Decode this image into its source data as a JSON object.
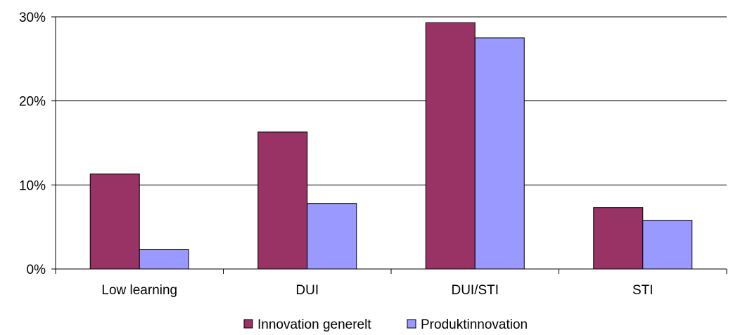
{
  "chart_data": {
    "type": "bar",
    "categories": [
      "Low learning",
      "DUI",
      "DUI/STI",
      "STI"
    ],
    "series": [
      {
        "name": "Innovation generelt",
        "values": [
          11.3,
          16.3,
          29.3,
          7.3
        ],
        "color": "#993366"
      },
      {
        "name": "Produktinnovation",
        "values": [
          2.3,
          7.8,
          27.5,
          5.8
        ],
        "color": "#9999ff"
      }
    ],
    "ylim": [
      0,
      30
    ],
    "yticks": [
      0,
      10,
      20,
      30
    ],
    "ytick_labels": [
      "0%",
      "10%",
      "20%",
      "30%"
    ],
    "y_unit": "%",
    "grid": true,
    "legend_position": "bottom"
  }
}
